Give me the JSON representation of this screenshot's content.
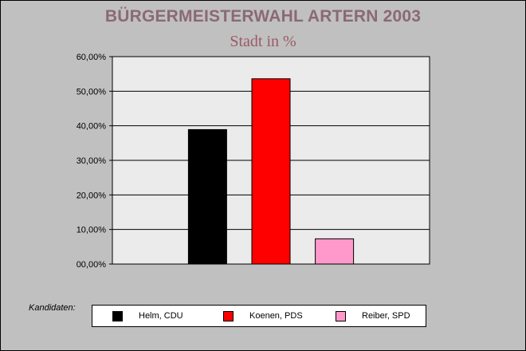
{
  "chart_data": {
    "type": "bar",
    "title": "BÜRGERMEISTERWAHL ARTERN 2003",
    "subtitle": "Stadt in %",
    "categories": [
      "Helm, CDU",
      "Koenen, PDS",
      "Reiber, SPD"
    ],
    "values": [
      38.9,
      53.6,
      7.3
    ],
    "colors": [
      "#000000",
      "#ff0000",
      "#ff99cc"
    ],
    "ylim": [
      0,
      60
    ],
    "yticks": [
      0,
      10,
      20,
      30,
      40,
      50,
      60
    ],
    "ytick_labels": [
      "00,00%",
      "10,00%",
      "20,00%",
      "30,00%",
      "40,00%",
      "50,00%",
      "60,00%"
    ],
    "grid": true,
    "legend_title": "Kandidaten:",
    "legend_placement": "bottom"
  }
}
